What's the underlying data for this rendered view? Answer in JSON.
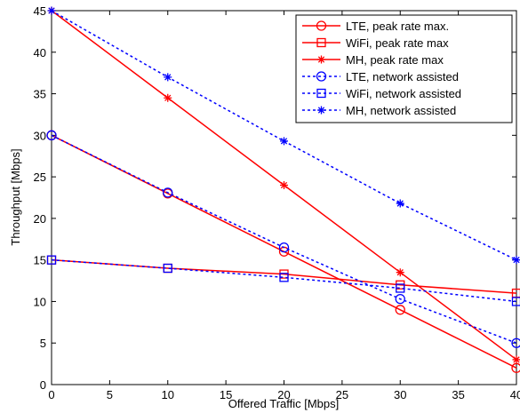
{
  "chart_data": {
    "type": "line",
    "title": "",
    "xlabel": "Offered Traffic [Mbps]",
    "ylabel": "Throughput [Mbps]",
    "xlim": [
      0,
      40
    ],
    "ylim": [
      0,
      45
    ],
    "xticks": [
      0,
      5,
      10,
      15,
      20,
      25,
      30,
      35,
      40
    ],
    "yticks": [
      0,
      5,
      10,
      15,
      20,
      25,
      30,
      35,
      40,
      45
    ],
    "grid": false,
    "legend_position": "top-right",
    "x": [
      0,
      10,
      20,
      30,
      40
    ],
    "series": [
      {
        "name": "LTE, peak rate max.",
        "values": [
          30,
          23,
          16,
          9,
          2
        ],
        "color": "#ff0000",
        "line": "solid",
        "marker": "circle"
      },
      {
        "name": "WiFi, peak rate max",
        "values": [
          15,
          14,
          13.3,
          12,
          11
        ],
        "color": "#ff0000",
        "line": "solid",
        "marker": "square"
      },
      {
        "name": "MH, peak rate max",
        "values": [
          45,
          34.5,
          24,
          13.5,
          3
        ],
        "color": "#ff0000",
        "line": "solid",
        "marker": "star"
      },
      {
        "name": "LTE, network assisted",
        "values": [
          30,
          23.1,
          16.5,
          10.3,
          5
        ],
        "color": "#0000ff",
        "line": "dotted",
        "marker": "circle"
      },
      {
        "name": "WiFi, network assisted",
        "values": [
          15,
          14,
          12.9,
          11.6,
          10
        ],
        "color": "#0000ff",
        "line": "dotted",
        "marker": "square"
      },
      {
        "name": "MH, network assisted",
        "values": [
          45,
          37,
          29.3,
          21.8,
          15
        ],
        "color": "#0000ff",
        "line": "dotted",
        "marker": "star"
      }
    ]
  }
}
